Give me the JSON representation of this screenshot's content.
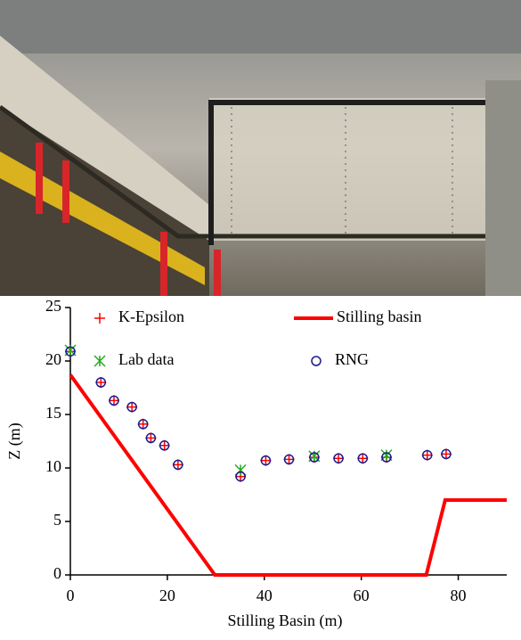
{
  "chart_data": {
    "type": "scatter",
    "xlabel": "Stilling Basin (m)",
    "ylabel": "Z (m)",
    "xlim": [
      0,
      90
    ],
    "xticks": [
      0,
      20,
      40,
      60,
      80
    ],
    "ylim": [
      0,
      25
    ],
    "yticks": [
      0,
      5,
      10,
      15,
      20,
      25
    ],
    "series": [
      {
        "name": "K-Epsilon",
        "color": "#ff0000",
        "marker": "plus",
        "x": [
          0,
          6.3,
          9,
          12.7,
          15,
          16.6,
          19.4,
          22.2,
          35.1,
          40.3,
          45.1,
          50.3,
          55.3,
          60.3,
          65.2,
          73.6,
          77.5
        ],
        "values": [
          20.9,
          18,
          16.3,
          15.7,
          14.1,
          12.8,
          12.1,
          10.3,
          9.2,
          10.7,
          10.8,
          11,
          10.9,
          10.9,
          11,
          11.2,
          11.3
        ]
      },
      {
        "name": "Stilling basin",
        "color": "#ff0000",
        "marker": "line",
        "x": [
          0,
          29.8,
          73.4,
          77.3,
          90
        ],
        "values": [
          18.7,
          0,
          0,
          7,
          7
        ]
      },
      {
        "name": "Lab data",
        "color": "#22aa22",
        "marker": "star",
        "x": [
          0,
          35.1,
          50.3,
          65.2
        ],
        "values": [
          21,
          9.8,
          11.1,
          11.2
        ]
      },
      {
        "name": "RNG",
        "color": "#1a1a8c",
        "marker": "circle",
        "x": [
          0,
          6.3,
          9,
          12.7,
          15,
          16.6,
          19.4,
          22.2,
          35.1,
          40.3,
          45.1,
          50.3,
          55.3,
          60.3,
          65.2,
          73.6,
          77.5
        ],
        "values": [
          20.9,
          18,
          16.3,
          15.7,
          14.1,
          12.8,
          12.1,
          10.3,
          9.2,
          10.7,
          10.8,
          11,
          10.9,
          10.9,
          11,
          11.2,
          11.3
        ]
      }
    ]
  }
}
